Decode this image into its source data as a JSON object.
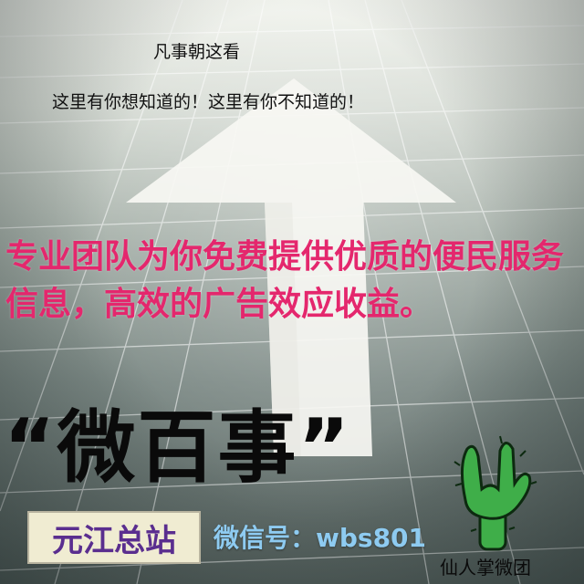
{
  "poster": {
    "top_slogan": "凡事朝这看",
    "sub_slogan": "这里有你想知道的！这里有你不知道的！",
    "promo_text": "专业团队为你免费提供优质的便民服务信息，高效的广告效应收益。",
    "brand_name": "“微百事”",
    "station_label": "元江总站",
    "wechat_id": "微信号：wbs801",
    "team_name": "仙人掌微团"
  },
  "colors": {
    "promo_text": "#e4276d",
    "station_text": "#5a2e8f",
    "wechat_text": "#8ecbf1",
    "cactus": "#3fae49"
  },
  "icons": {
    "arrow": "up-arrow-icon",
    "cactus": "cactus-hand-icon"
  }
}
